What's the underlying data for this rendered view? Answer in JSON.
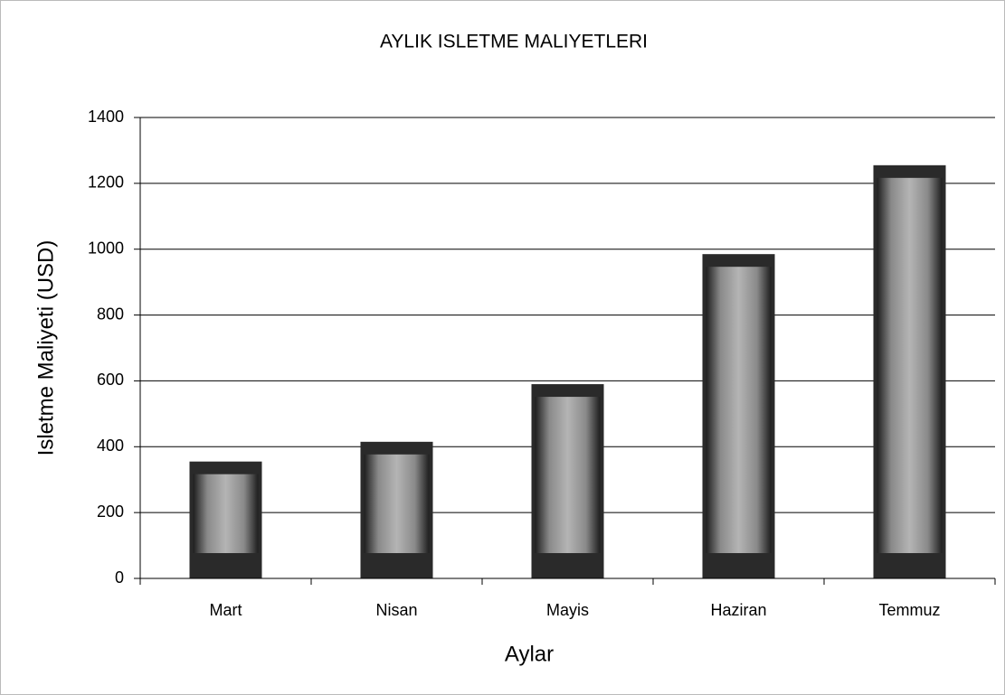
{
  "chart_data": {
    "type": "bar",
    "title": "AYLIK ISLETME MALIYETLERI",
    "x_label": "Aylar",
    "y_label": "Isletme Maliyeti (USD)",
    "categories": [
      "Mart",
      "Nisan",
      "Mayis",
      "Haziran",
      "Temmuz"
    ],
    "values": [
      355,
      415,
      590,
      985,
      1255
    ],
    "color": "#2a2a2a",
    "ylim": [
      0,
      1400
    ],
    "yticks": [
      0,
      200,
      400,
      600,
      800,
      1000,
      1200,
      1400
    ],
    "grid": true
  }
}
